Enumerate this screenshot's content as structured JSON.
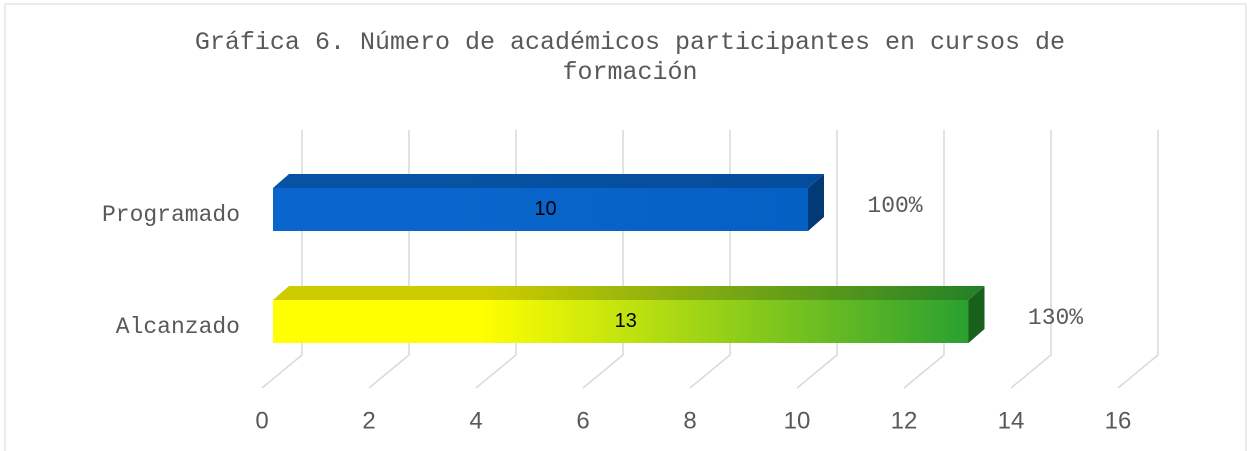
{
  "chart_data": {
    "type": "bar3d",
    "title": "Gráfica 6.  Número de académicos participantes en cursos de formación",
    "categories": [
      "Programado",
      "Alcanzado"
    ],
    "values": [
      10,
      13
    ],
    "colors": [
      [
        "#0a66cc",
        "#0560c4"
      ],
      [
        "#ffff00",
        "#2aa030"
      ]
    ],
    "annotations": [
      "100%",
      "130%"
    ],
    "xlim": [
      0,
      16
    ],
    "xticks": [
      0,
      2,
      4,
      6,
      8,
      10,
      12,
      14,
      16
    ],
    "grid": true
  }
}
